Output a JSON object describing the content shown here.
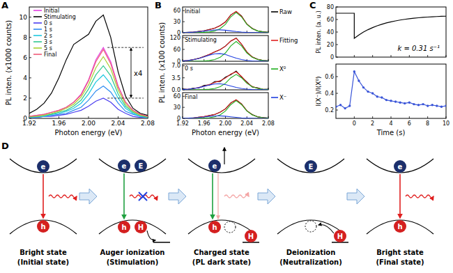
{
  "chart_data": [
    {
      "panel_label": "A",
      "type": "line",
      "x_label": "Photon energy (eV)",
      "y_label": "PL inten. (x1000 counts)",
      "x": [
        1.92,
        1.93,
        1.94,
        1.95,
        1.96,
        1.97,
        1.98,
        1.99,
        2.0,
        2.01,
        2.02,
        2.03,
        2.04,
        2.05,
        2.06,
        2.07,
        2.08
      ],
      "xlim": [
        1.92,
        2.08
      ],
      "xticks": [
        1.92,
        1.96,
        {
          "value": 2,
          "label": "2.00"
        },
        2.04,
        2.08
      ],
      "ylim": [
        0,
        11
      ],
      "yticks": [
        0,
        2,
        4,
        6,
        8,
        10
      ],
      "grid": false,
      "legend": "upper left",
      "annotation": "x4",
      "series": [
        {
          "name": "Initial",
          "color": "#e23fe2",
          "values": [
            0.2,
            0.3,
            0.4,
            0.6,
            0.8,
            1.1,
            1.6,
            2.4,
            3.8,
            5.8,
            7.0,
            5.6,
            3.2,
            1.6,
            0.8,
            0.4,
            0.2
          ]
        },
        {
          "name": "Stimulating",
          "color": "#000000",
          "values": [
            0.5,
            0.9,
            1.5,
            2.5,
            4.0,
            5.8,
            7.3,
            7.8,
            8.3,
            9.6,
            10.2,
            8.0,
            4.6,
            2.2,
            1.0,
            0.5,
            0.3
          ]
        },
        {
          "name": "0 s",
          "color": "#4a3cf0",
          "values": [
            0.1,
            0.1,
            0.2,
            0.2,
            0.3,
            0.4,
            0.6,
            0.8,
            1.2,
            1.7,
            2.0,
            1.6,
            0.9,
            0.5,
            0.2,
            0.1,
            0.1
          ]
        },
        {
          "name": "1 s",
          "color": "#2f8cf0",
          "values": [
            0.1,
            0.1,
            0.2,
            0.3,
            0.4,
            0.5,
            0.8,
            1.1,
            1.8,
            2.7,
            3.2,
            2.6,
            1.5,
            0.7,
            0.4,
            0.2,
            0.1
          ]
        },
        {
          "name": "2 s",
          "color": "#1ec8e0",
          "values": [
            0.1,
            0.2,
            0.2,
            0.4,
            0.5,
            0.7,
            1.0,
            1.5,
            2.4,
            3.6,
            4.3,
            3.4,
            2.0,
            1.0,
            0.5,
            0.2,
            0.1
          ]
        },
        {
          "name": "3 s",
          "color": "#30c890",
          "values": [
            0.1,
            0.2,
            0.3,
            0.4,
            0.6,
            0.8,
            1.2,
            1.8,
            2.9,
            4.3,
            5.2,
            4.2,
            2.4,
            1.2,
            0.6,
            0.3,
            0.1
          ]
        },
        {
          "name": "5 s",
          "color": "#a8d030",
          "values": [
            0.2,
            0.2,
            0.3,
            0.5,
            0.7,
            1.0,
            1.4,
            2.1,
            3.3,
            5.0,
            6.1,
            4.9,
            2.8,
            1.4,
            0.7,
            0.3,
            0.2
          ]
        },
        {
          "name": "Final",
          "color": "#f05a78",
          "values": [
            0.2,
            0.3,
            0.4,
            0.6,
            0.8,
            1.1,
            1.6,
            2.3,
            3.7,
            5.6,
            6.8,
            5.4,
            3.1,
            1.6,
            0.8,
            0.4,
            0.2
          ]
        }
      ]
    },
    {
      "panel_label": "B",
      "type": "line",
      "x_label": "Photon energy (eV)",
      "y_label": "PL inten. (x100 counts)",
      "x": [
        1.92,
        1.93,
        1.94,
        1.95,
        1.96,
        1.97,
        1.98,
        1.99,
        2.0,
        2.01,
        2.02,
        2.03,
        2.04,
        2.05,
        2.06,
        2.07,
        2.08
      ],
      "xlim": [
        1.92,
        2.08
      ],
      "xticks": [
        1.92,
        1.96,
        {
          "value": 2,
          "label": "2.00"
        },
        2.04,
        2.08
      ],
      "grid": false,
      "legend": "right",
      "series": [
        {
          "name": "Raw",
          "color": "#000000"
        },
        {
          "name": "Fitting",
          "color": "#e02020"
        },
        {
          "name": "X⁰",
          "color": "#20b020"
        },
        {
          "name": "X⁻",
          "color": "#2040e0"
        }
      ],
      "subplots": [
        {
          "title": "Initial",
          "ylim": [
            0,
            70
          ],
          "yticks": [
            0,
            30,
            60
          ],
          "tick_labels": "y",
          "values": [
            [
              0.6,
              1.2,
              1.3,
              3.9,
              5.1,
              8.9,
              12.1,
              19.5,
              29.2,
              48.6,
              57.5,
              45.6,
              23.2,
              11.9,
              4.8,
              2.7,
              0.8
            ],
            [
              0.4,
              0.8,
              1.6,
              3.4,
              5.5,
              8.4,
              12.6,
              18.8,
              29.8,
              48,
              58.2,
              44.8,
              23.9,
              11.4,
              5.2,
              2.3,
              1.1
            ],
            [
              0,
              0,
              0,
              0.6,
              1.1,
              2.2,
              5,
              11,
              23,
              43,
              55,
              43,
              23,
              11,
              5,
              2.2,
              1.1
            ],
            [
              0.4,
              0.8,
              1.6,
              2.8,
              4.4,
              6.2,
              7.6,
              7.8,
              6.8,
              5,
              3.2,
              1.8,
              0.9,
              0.4,
              0.2,
              0.1,
              0
            ]
          ]
        },
        {
          "title": "Stimulating",
          "ylim": [
            0,
            130
          ],
          "yticks": [
            0,
            60,
            120
          ],
          "tick_labels": "y",
          "values": [
            [
              2.5,
              3.6,
              8.6,
              14.4,
              24.8,
              34.5,
              47.8,
              58.6,
              76.9,
              102.1,
              116.8,
              86.1,
              47.1,
              21.5,
              10.3,
              3.9,
              2.4
            ],
            [
              2,
              4,
              8,
              15,
              24,
              35.2,
              47,
              59.2,
              76,
              102.8,
              116,
              86.8,
              46.4,
              22,
              9.8,
              4.4,
              2
            ],
            [
              0,
              0,
              0,
              1,
              2,
              4,
              9,
              20,
              42,
              78,
              100,
              78,
              42,
              20,
              9,
              4,
              2
            ],
            [
              2,
              4,
              8,
              14,
              22,
              31.2,
              38,
              39.2,
              34,
              24.8,
              16,
              8.8,
              4.4,
              2,
              0.8,
              0.4,
              0
            ]
          ]
        },
        {
          "title": "0 s",
          "ylim": [
            0,
            7.5
          ],
          "yticks": [
            {
              "value": 0,
              "label": "0.0"
            },
            3.5,
            {
              "value": 7,
              "label": "7.0"
            }
          ],
          "tick_labels": "y",
          "values": [
            [
              0.3,
              0.1,
              0.5,
              0.5,
              1.3,
              1.4,
              2.4,
              2.4,
              3.7,
              4.4,
              5.5,
              3.7,
              2.3,
              0.8,
              0.6,
              0.1,
              0.2
            ],
            [
              0.09,
              0.18,
              0.36,
              0.68,
              1.08,
              1.58,
              2.12,
              2.66,
              3.42,
              4.63,
              5.22,
              3.91,
              2.09,
              0.99,
              0.45,
              0.2,
              0.09
            ],
            [
              0,
              0,
              0,
              0.05,
              0.09,
              0.18,
              0.41,
              0.9,
              1.89,
              3.51,
              4.5,
              3.51,
              1.89,
              0.9,
              0.41,
              0.18,
              0.09
            ],
            [
              0.09,
              0.18,
              0.36,
              0.63,
              0.99,
              1.4,
              1.71,
              1.76,
              1.53,
              1.12,
              0.72,
              0.4,
              0.2,
              0.09,
              0.04,
              0.02,
              0
            ]
          ]
        },
        {
          "title": "Final",
          "ylim": [
            0,
            70
          ],
          "yticks": [
            0,
            30,
            60
          ],
          "values": [
            [
              0.2,
              1,
              1.1,
              3.4,
              4.6,
              7.9,
              10.6,
              17.1,
              25.8,
              42.3,
              50.1,
              39.5,
              20.6,
              10.5,
              4.1,
              2.3,
              0.8
            ],
            [
              0.4,
              0.7,
              1.4,
              3,
              4.9,
              7.4,
              11,
              16.5,
              26.2,
              41.7,
              50.8,
              38.9,
              21,
              10,
              4.4,
              2,
              1
            ],
            [
              0,
              0,
              0,
              0.5,
              1,
              1.9,
              4.3,
              9.6,
              20.2,
              37.4,
              48,
              37.4,
              20.2,
              9.6,
              4.3,
              1.9,
              1
            ],
            [
              0.4,
              0.7,
              1.4,
              2.5,
              3.9,
              5.5,
              6.7,
              6.9,
              6,
              4.3,
              2.8,
              1.5,
              0.8,
              0.4,
              0.1,
              0.1,
              0
            ]
          ]
        }
      ]
    },
    {
      "panel_label": "C",
      "type": "line",
      "y_label": "PL inten. (a. u.)",
      "annotation": "k = 0.31 s⁻¹",
      "color": "#000000",
      "x": [
        -2,
        -1.5,
        -1,
        -0.5,
        0,
        0,
        0.5,
        1,
        1.5,
        2,
        2.5,
        3,
        3.5,
        4,
        4.5,
        5,
        5.5,
        6,
        6.5,
        7,
        7.5,
        8,
        8.5,
        9,
        9.5,
        10
      ],
      "values": [
        70,
        70,
        70,
        70,
        70,
        30,
        35.3,
        39.9,
        43.8,
        47.1,
        50.0,
        52.4,
        54.5,
        56.3,
        57.8,
        59.2,
        60.3,
        61.2,
        62.1,
        62.8,
        63.4,
        63.9,
        64.3,
        64.7,
        65.1,
        65.3
      ],
      "xlim": [
        -2,
        10
      ],
      "xticks": [
        0,
        2,
        4,
        6,
        8,
        10
      ],
      "ylim": [
        0,
        80
      ],
      "yticks": [
        0,
        20,
        40,
        60,
        80
      ],
      "tick_labels": "y",
      "grid": false
    },
    {
      "type": "line",
      "marker": "circle",
      "x_label": "Time (s)",
      "y_label": "I(X⁻)/I(X⁰)",
      "color": "#3a55d8",
      "x": [
        -2,
        -1.5,
        -1,
        -0.5,
        0,
        0.5,
        1,
        1.5,
        2,
        2.5,
        3,
        3.5,
        4,
        4.5,
        5,
        5.5,
        6,
        6.5,
        7,
        7.5,
        8,
        8.5,
        9,
        9.5,
        10
      ],
      "values": [
        0.24,
        0.26,
        0.22,
        0.25,
        0.66,
        0.55,
        0.47,
        0.42,
        0.4,
        0.36,
        0.35,
        0.32,
        0.31,
        0.3,
        0.29,
        0.28,
        0.29,
        0.27,
        0.26,
        0.27,
        0.25,
        0.26,
        0.25,
        0.24,
        0.25
      ],
      "xlim": [
        -2,
        10
      ],
      "xticks": [
        0,
        2,
        4,
        6,
        8,
        10
      ],
      "ylim": [
        0.1,
        0.75
      ],
      "yticks": [
        0.2,
        0.4,
        0.6
      ],
      "grid": false
    }
  ],
  "diagram": {
    "panel_label": "D",
    "particles": {
      "electron": "e",
      "hole": "h",
      "extra_electron": "E",
      "extra_hole": "H"
    },
    "states": [
      {
        "title": "Bright state",
        "subtitle": "(Initial state)"
      },
      {
        "title": "Auger ionization",
        "subtitle": "(Stimulation)"
      },
      {
        "title": "Charged state",
        "subtitle": "(PL dark state)"
      },
      {
        "title": "Deionization",
        "subtitle": "(Neutralization)"
      },
      {
        "title": "Bright state",
        "subtitle": "(Final state)"
      }
    ]
  }
}
